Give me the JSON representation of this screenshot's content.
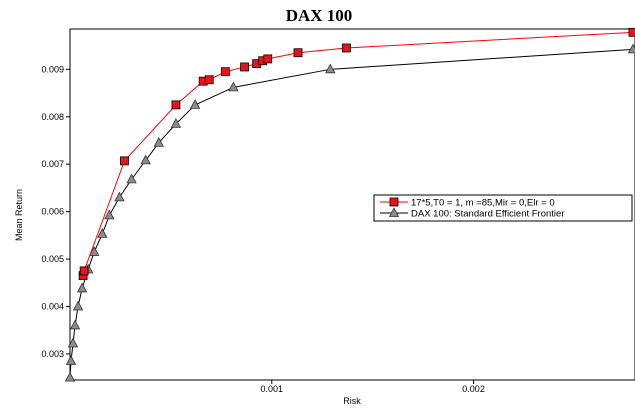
{
  "chart_data": {
    "type": "line",
    "title": "DAX 100",
    "xlabel": "Risk",
    "ylabel": "Mean Return",
    "xlim": [
      0.0,
      0.0028
    ],
    "ylim": [
      0.00245,
      0.00985
    ],
    "xticks": [
      0.001,
      0.002
    ],
    "xtick_labels": [
      "0.001",
      "0.002"
    ],
    "yticks": [
      0.003,
      0.004,
      0.005,
      0.006,
      0.007,
      0.008,
      0.009
    ],
    "ytick_labels": [
      "0.003",
      "0.004",
      "0.005",
      "0.006",
      "0.007",
      "0.008",
      "0.009"
    ],
    "grid": false,
    "legend_position": "right",
    "series": [
      {
        "name": "17*5,T0 = 1, m =85,Mir = 0,Elr = 0",
        "color": "#ff0000",
        "marker": "square",
        "x": [
          6.5e-05,
          7e-05,
          0.00027,
          0.000525,
          0.00066,
          0.00069,
          0.00077,
          0.000865,
          0.000925,
          0.000955,
          0.00098,
          0.00113,
          0.00137,
          0.00279
        ],
        "y": [
          0.00465,
          0.00475,
          0.00707,
          0.00825,
          0.00875,
          0.00878,
          0.00895,
          0.00905,
          0.00912,
          0.00918,
          0.00922,
          0.00935,
          0.00945,
          0.00978
        ]
      },
      {
        "name": "DAX 100: Standard Efficient Frontier",
        "color": "#000000",
        "marker": "triangle",
        "x": [
          0.0,
          5e-06,
          1.5e-05,
          2.5e-05,
          4e-05,
          6e-05,
          9e-05,
          0.00012,
          0.00016,
          0.000195,
          0.000245,
          0.000305,
          0.000375,
          0.00044,
          0.000525,
          0.00062,
          0.00081,
          0.00129,
          0.00279
        ],
        "y": [
          0.0025,
          0.00285,
          0.00322,
          0.0036,
          0.004,
          0.00438,
          0.00478,
          0.00515,
          0.00553,
          0.00592,
          0.0063,
          0.00668,
          0.00708,
          0.00745,
          0.00785,
          0.00825,
          0.00862,
          0.009,
          0.00942
        ]
      }
    ]
  }
}
